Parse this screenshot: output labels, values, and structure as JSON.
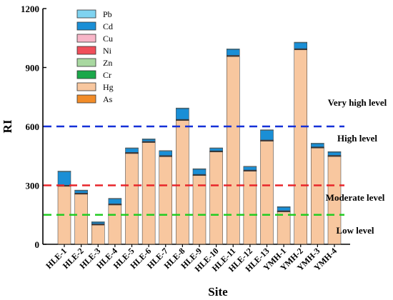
{
  "chart_data": {
    "type": "bar",
    "stacked": true,
    "xlabel": "Site",
    "ylabel": "RI",
    "ylim": [
      0,
      1200
    ],
    "yticks": [
      0,
      300,
      600,
      900,
      1200
    ],
    "categories": [
      "HLE-1",
      "HLE-2",
      "HLE-3",
      "HLE-4",
      "HLE-5",
      "HLE-6",
      "HLE-7",
      "HLE-8",
      "HLE-9",
      "HLE-10",
      "HLE-11",
      "HLE-12",
      "HLE-13",
      "YMH-1",
      "YMH-2",
      "YMH-3",
      "YMH-4"
    ],
    "legend_position": "top-left",
    "series": [
      {
        "name": "As",
        "color": "#F28C28",
        "values": [
          1,
          1,
          1,
          1,
          1,
          1,
          1,
          1,
          1,
          1,
          1,
          1,
          1,
          1,
          1,
          1,
          1
        ]
      },
      {
        "name": "Hg",
        "color": "#F8C79F",
        "values": [
          295,
          255,
          98,
          200,
          462,
          518,
          446,
          630,
          350,
          470,
          956,
          372,
          525,
          165,
          990,
          490,
          447
        ]
      },
      {
        "name": "Cr",
        "color": "#1BA84A",
        "values": [
          1,
          1,
          1,
          1,
          1,
          1,
          1,
          1,
          1,
          1,
          1,
          1,
          1,
          1,
          1,
          1,
          1
        ]
      },
      {
        "name": "Zn",
        "color": "#A8D8A0",
        "values": [
          1,
          1,
          1,
          1,
          1,
          1,
          1,
          1,
          1,
          1,
          1,
          1,
          1,
          1,
          1,
          1,
          1
        ]
      },
      {
        "name": "Ni",
        "color": "#F04E5A",
        "values": [
          1,
          1,
          1,
          1,
          1,
          1,
          1,
          1,
          1,
          1,
          1,
          1,
          1,
          1,
          1,
          1,
          1
        ]
      },
      {
        "name": "Cu",
        "color": "#F8B6C8",
        "values": [
          2,
          2,
          2,
          2,
          2,
          2,
          2,
          2,
          2,
          2,
          2,
          2,
          2,
          2,
          2,
          2,
          2
        ]
      },
      {
        "name": "Cd",
        "color": "#1A8FD6",
        "values": [
          68,
          12,
          8,
          25,
          20,
          10,
          22,
          55,
          26,
          12,
          30,
          16,
          49,
          18,
          30,
          16,
          16
        ]
      },
      {
        "name": "Pb",
        "color": "#7FD3F0",
        "values": [
          4,
          3,
          3,
          3,
          3,
          3,
          3,
          3,
          3,
          3,
          3,
          3,
          3,
          3,
          3,
          3,
          3
        ]
      }
    ],
    "legend_order": [
      "Pb",
      "Cd",
      "Cu",
      "Ni",
      "Zn",
      "Cr",
      "Hg",
      "As"
    ],
    "thresholds": [
      {
        "value": 600,
        "label": "Very high level",
        "color": "#1530D8"
      },
      {
        "value": 300,
        "label": "Moderate level",
        "color": "#E8262B"
      },
      {
        "value": 150,
        "label": "Low level",
        "color": "#22CC22"
      }
    ],
    "level_labels": [
      "Very high level",
      "High level",
      "Moderate level",
      "Low level"
    ]
  }
}
